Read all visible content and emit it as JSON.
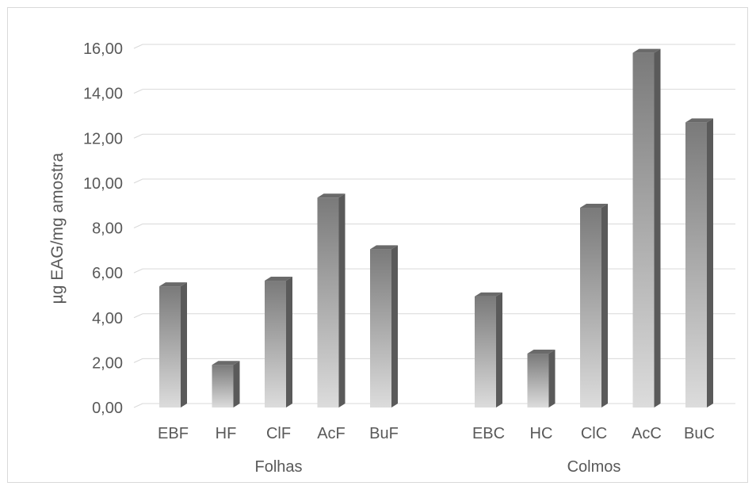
{
  "chart_data": {
    "type": "bar",
    "ylabel": "µg EAG/mg amostra",
    "ylim": [
      0,
      16
    ],
    "yticks": [
      "0,00",
      "2,00",
      "4,00",
      "6,00",
      "8,00",
      "10,00",
      "12,00",
      "14,00",
      "16,00"
    ],
    "grid": true,
    "groups": [
      {
        "name": "Folhas",
        "categories": [
          "EBF",
          "HF",
          "ClF",
          "AcF",
          "BuF"
        ],
        "values": [
          5.4,
          1.9,
          5.65,
          9.35,
          7.05
        ]
      },
      {
        "name": "Colmos",
        "categories": [
          "EBC",
          "HC",
          "ClC",
          "AcC",
          "BuC"
        ],
        "values": [
          4.95,
          2.4,
          8.9,
          15.8,
          12.7
        ]
      }
    ],
    "colors": {
      "bar_front_top": "#7a7a7a",
      "bar_front_bottom": "#d9d9d9",
      "bar_side": "#5a5a5a",
      "bar_top": "#6a6a6a",
      "grid": "#d9d9d9",
      "text": "#595959"
    }
  }
}
